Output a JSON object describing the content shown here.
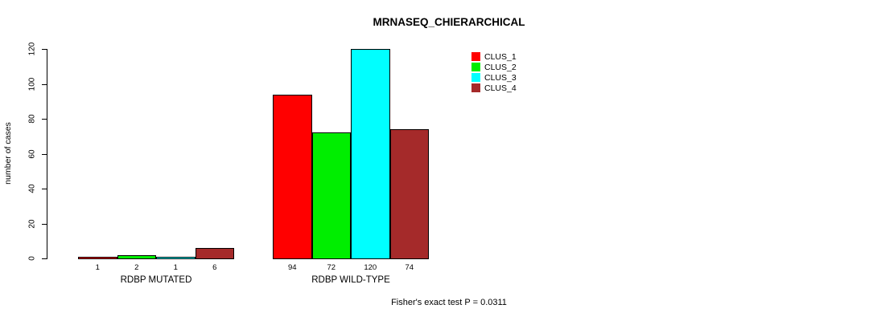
{
  "chart_data": {
    "type": "bar",
    "title": "MRNASEQ_CHIERARCHICAL",
    "ylabel": "number of cases",
    "xlabel": "",
    "yticks": [
      0,
      20,
      40,
      60,
      80,
      100,
      120
    ],
    "ylim": [
      0,
      126
    ],
    "grid": false,
    "legend_position": "top-right",
    "categories": [
      "RDBP MUTATED",
      "RDBP WILD-TYPE"
    ],
    "series": [
      {
        "name": "CLUS_1",
        "color": "#ff0000",
        "values": [
          1,
          94
        ]
      },
      {
        "name": "CLUS_2",
        "color": "#00ee00",
        "values": [
          2,
          72
        ]
      },
      {
        "name": "CLUS_3",
        "color": "#00ffff",
        "values": [
          1,
          120
        ]
      },
      {
        "name": "CLUS_4",
        "color": "#a52a2a",
        "values": [
          6,
          74
        ]
      }
    ],
    "bar_value_labels": {
      "RDBP MUTATED": [
        "1",
        "2",
        "1",
        "6"
      ],
      "RDBP WILD-TYPE": [
        "94",
        "72",
        "120",
        "74"
      ]
    },
    "annotation": "Fisher's exact test P = 0.0311"
  }
}
